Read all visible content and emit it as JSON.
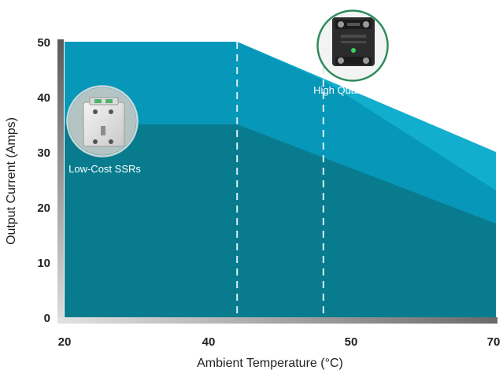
{
  "chart_data": {
    "type": "area",
    "xlabel": "Ambient Temperature (°C)",
    "ylabel": "Output Current (Amps)",
    "xlim": [
      20,
      70
    ],
    "ylim": [
      0,
      50
    ],
    "x_ticks": [
      "20",
      "40",
      "50",
      "70"
    ],
    "y_ticks": [
      "0",
      "10",
      "20",
      "30",
      "40",
      "50"
    ],
    "reference_lines_x": [
      40,
      50
    ],
    "series": [
      {
        "x": [
          20,
          40,
          70
        ],
        "y": [
          50,
          50,
          30
        ],
        "color": "#12aecd"
      },
      {
        "x": [
          20,
          40,
          50,
          70
        ],
        "y": [
          50,
          50,
          43,
          23
        ],
        "color": "#0797b8"
      },
      {
        "x": [
          20,
          40,
          50,
          70
        ],
        "y": [
          35,
          35,
          29,
          17
        ],
        "color": "#087c8e"
      }
    ],
    "annotations": [
      {
        "label": "Low-Cost SSRs",
        "x": 24,
        "y": 36
      },
      {
        "label": "High Quality SSRs",
        "x": 50.5,
        "y": 49
      }
    ]
  }
}
